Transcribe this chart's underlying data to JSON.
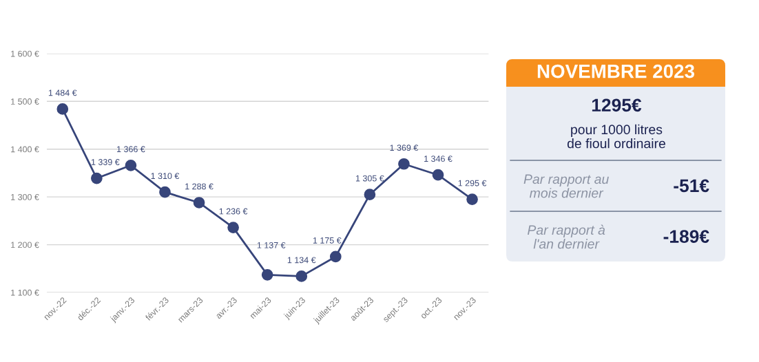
{
  "chart_data": [
    {
      "type": "line",
      "categories": [
        "nov.-22",
        "déc.-22",
        "janv.-23",
        "févr.-23",
        "mars-23",
        "avr.-23",
        "mai-23",
        "juin-23",
        "juillet-23",
        "août-23",
        "sept.-23",
        "oct.-23",
        "nov.-23"
      ],
      "series": [
        {
          "color": "#37457a",
          "values": [
            1484,
            1339,
            1366,
            1310,
            1288,
            1236,
            1137,
            1134,
            1175,
            1305,
            1369,
            1346,
            1295
          ],
          "value_labels": [
            "1 484 €",
            "1 339 €",
            "1 366 €",
            "1 310 €",
            "1 288 €",
            "1 236 €",
            "1 137 €",
            "1 134 €",
            "1 175 €",
            "1 305 €",
            "1 369 €",
            "1 346 €",
            "1 295 €"
          ]
        }
      ],
      "ylim": [
        1100,
        1600
      ],
      "yticks": [
        {
          "value": 1100,
          "label": "1 100 €"
        },
        {
          "value": 1200,
          "label": "1 200 €"
        },
        {
          "value": 1300,
          "label": "1 300 €"
        },
        {
          "value": 1400,
          "label": "1 400 €"
        },
        {
          "value": 1500,
          "label": "1 500 €"
        },
        {
          "value": 1600,
          "label": "1 600 €"
        }
      ],
      "grid": "y",
      "marker": "circle",
      "line_style": "solid"
    },
    {
      "type": "other",
      "title": "NOVEMBRE 2023",
      "annotations": [
        "1295€",
        "pour 1000 litres\nde fioul ordinaire",
        "Par rapport au\nmois dernier",
        "-51€",
        "Par rapport à\nl'an dernier",
        "-189€"
      ]
    }
  ]
}
